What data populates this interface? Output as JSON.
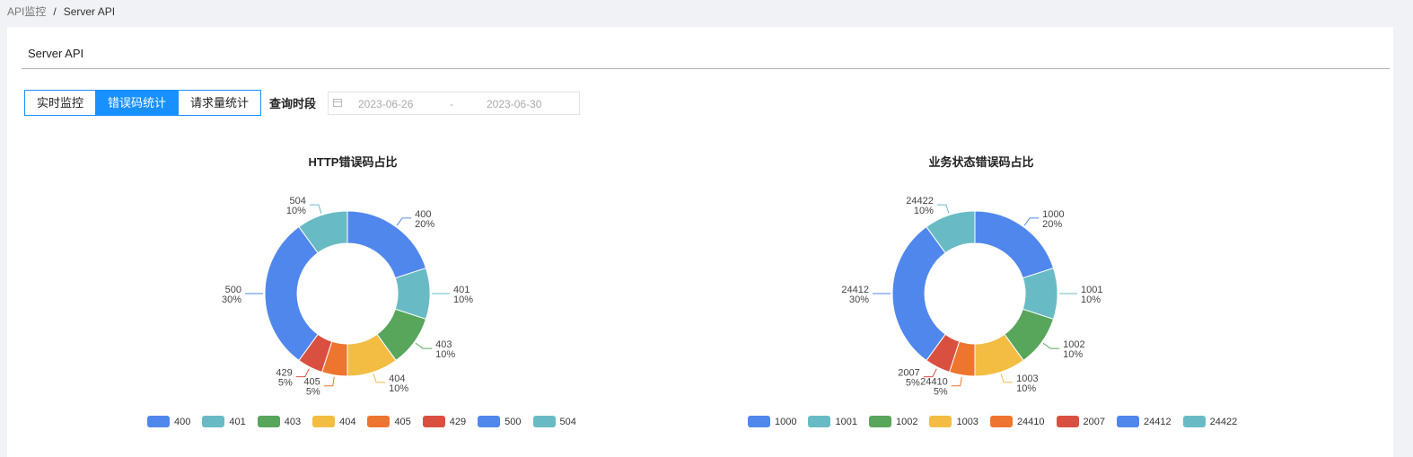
{
  "breadcrumb": {
    "parent": "API监控",
    "separator": "/",
    "current": "Server API"
  },
  "card": {
    "title": "Server API"
  },
  "tabs": [
    {
      "label": "实时监控",
      "active": false
    },
    {
      "label": "错误码统计",
      "active": true
    },
    {
      "label": "请求量统计",
      "active": false
    }
  ],
  "query": {
    "label": "查询时段",
    "start": "2023-06-26",
    "separator": "-",
    "end": "2023-06-30",
    "icon": "calendar-icon"
  },
  "palette": [
    "#5087ec",
    "#68bbc4",
    "#58a55c",
    "#f2bd42",
    "#ee752f",
    "#d95040",
    "#5087ec",
    "#68bbc4"
  ],
  "chart_data": [
    {
      "type": "pie",
      "donut": true,
      "title": "HTTP错误码占比",
      "categories": [
        "400",
        "401",
        "403",
        "404",
        "405",
        "429",
        "500",
        "504"
      ],
      "values": [
        20,
        10,
        10,
        10,
        5,
        5,
        30,
        10
      ],
      "percent_labels": [
        "20%",
        "10%",
        "10%",
        "10%",
        "5%",
        "5%",
        "30%",
        "10%"
      ],
      "legend_position": "bottom"
    },
    {
      "type": "pie",
      "donut": true,
      "title": "业务状态错误码占比",
      "categories": [
        "1000",
        "1001",
        "1002",
        "1003",
        "24410",
        "2007",
        "24412",
        "24422"
      ],
      "values": [
        20,
        10,
        10,
        10,
        5,
        5,
        30,
        10
      ],
      "percent_labels": [
        "20%",
        "10%",
        "10%",
        "10%",
        "5%",
        "5%",
        "30%",
        "10%"
      ],
      "legend_position": "bottom"
    }
  ]
}
